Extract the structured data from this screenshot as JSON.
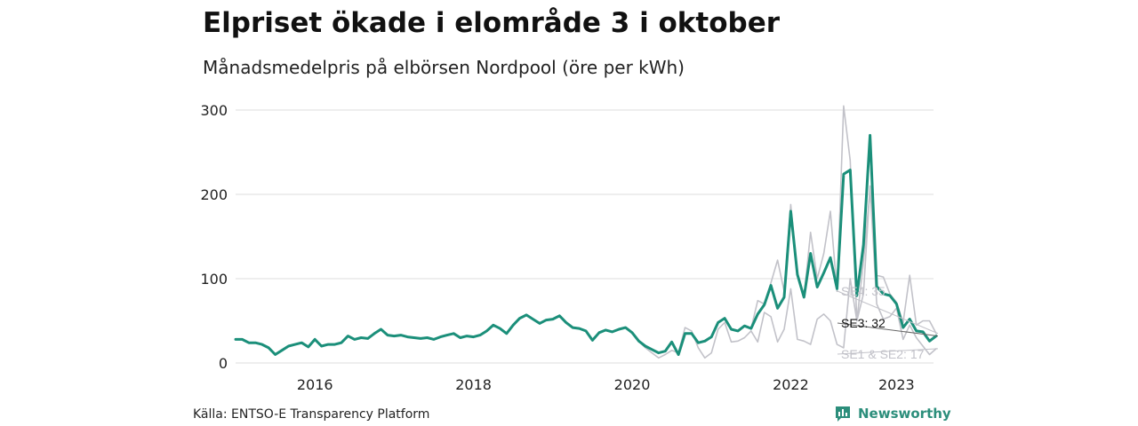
{
  "title": "Elpriset ökade i elområde 3 i oktober",
  "subtitle": "Månadsmedelpris på elbörsen Nordpool (öre per kWh)",
  "source": "Källa: ENTSO-E Transparency Platform",
  "brand": "Newsworthy",
  "colors": {
    "se3": "#1b8f7a",
    "other": "#c2c2c9",
    "grid": "#dedede",
    "brand": "#2c8e7b"
  },
  "chart_data": {
    "type": "line",
    "x_start": "2015-01",
    "x_end": "2023-10",
    "frequency": "monthly",
    "ylim": [
      0,
      300
    ],
    "yticks": [
      0,
      100,
      200,
      300
    ],
    "xticks": [
      "2016",
      "2018",
      "2020",
      "2022",
      "2023"
    ],
    "grid": true,
    "series": [
      {
        "name": "SE3",
        "end_label": "SE3: 32",
        "values": [
          28,
          28,
          24,
          24,
          22,
          18,
          10,
          15,
          20,
          22,
          24,
          19,
          28,
          20,
          22,
          22,
          24,
          32,
          28,
          30,
          29,
          35,
          40,
          33,
          32,
          33,
          31,
          30,
          29,
          30,
          28,
          31,
          33,
          35,
          30,
          32,
          31,
          33,
          38,
          45,
          41,
          35,
          45,
          53,
          57,
          52,
          47,
          51,
          52,
          56,
          48,
          42,
          41,
          38,
          27,
          36,
          39,
          37,
          40,
          42,
          36,
          26,
          20,
          16,
          12,
          14,
          25,
          10,
          35,
          35,
          24,
          26,
          31,
          48,
          53,
          40,
          38,
          44,
          41,
          58,
          69,
          92,
          65,
          78,
          180,
          105,
          78,
          130,
          90,
          107,
          125,
          88,
          224,
          229,
          80,
          140,
          270,
          91,
          82,
          80,
          70,
          42,
          52,
          38,
          37,
          26,
          32
        ]
      },
      {
        "name": "SE4",
        "end_label": "SE4: 35",
        "values": [
          28,
          28,
          24,
          24,
          22,
          18,
          10,
          15,
          20,
          22,
          24,
          19,
          28,
          20,
          22,
          22,
          24,
          32,
          28,
          30,
          29,
          35,
          40,
          33,
          32,
          33,
          31,
          30,
          29,
          30,
          28,
          31,
          33,
          35,
          30,
          32,
          31,
          33,
          38,
          45,
          41,
          35,
          45,
          53,
          57,
          52,
          47,
          51,
          52,
          56,
          48,
          42,
          41,
          38,
          27,
          36,
          39,
          37,
          40,
          42,
          36,
          26,
          20,
          16,
          12,
          14,
          25,
          10,
          35,
          35,
          24,
          26,
          31,
          48,
          53,
          40,
          38,
          44,
          41,
          74,
          70,
          95,
          122,
          85,
          188,
          105,
          78,
          155,
          100,
          130,
          180,
          85,
          305,
          240,
          50,
          120,
          205,
          104,
          102,
          82,
          72,
          48,
          104,
          45,
          50,
          50,
          35
        ]
      },
      {
        "name": "SE1 & SE2",
        "end_label": "SE1 & SE2: 17",
        "values": [
          28,
          28,
          24,
          24,
          22,
          18,
          10,
          15,
          20,
          22,
          24,
          19,
          28,
          20,
          22,
          22,
          24,
          32,
          28,
          30,
          29,
          35,
          40,
          33,
          32,
          33,
          31,
          30,
          29,
          30,
          28,
          31,
          33,
          35,
          30,
          32,
          31,
          33,
          38,
          45,
          41,
          35,
          45,
          53,
          57,
          52,
          47,
          51,
          52,
          56,
          48,
          42,
          41,
          38,
          27,
          36,
          39,
          37,
          40,
          42,
          36,
          26,
          18,
          12,
          6,
          10,
          15,
          12,
          42,
          38,
          18,
          6,
          12,
          40,
          48,
          25,
          26,
          30,
          38,
          25,
          60,
          55,
          25,
          40,
          88,
          28,
          26,
          22,
          52,
          58,
          50,
          22,
          18,
          100,
          50,
          82,
          210,
          70,
          52,
          55,
          65,
          28,
          45,
          30,
          20,
          10,
          17
        ]
      }
    ]
  }
}
